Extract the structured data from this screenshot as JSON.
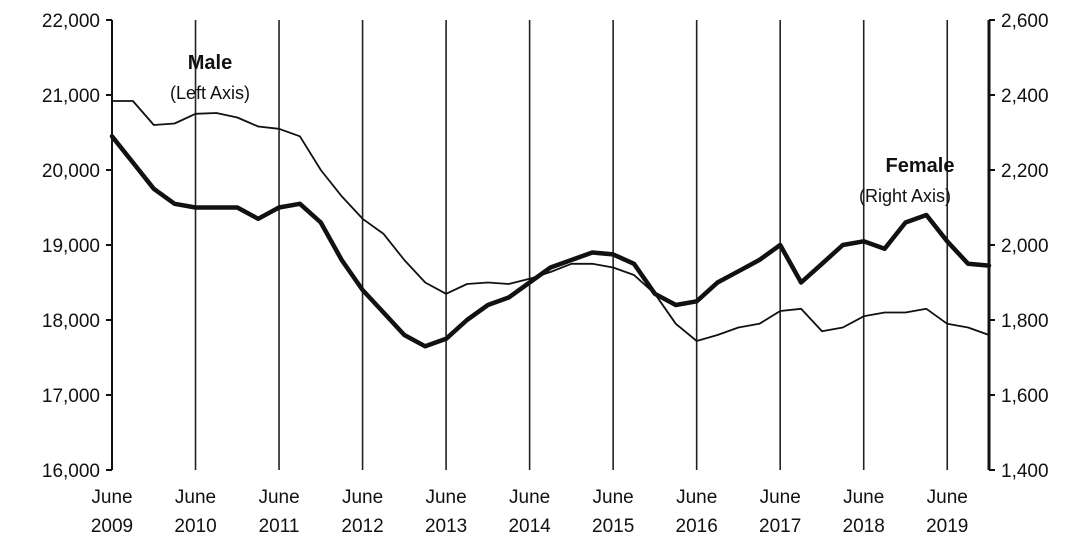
{
  "chart_data": {
    "type": "line",
    "title": "",
    "x_start": "2009-06",
    "x_end": "2019-12",
    "x_ticks": [
      {
        "l1": "June",
        "l2": "2009"
      },
      {
        "l1": "June",
        "l2": "2010"
      },
      {
        "l1": "June",
        "l2": "2011"
      },
      {
        "l1": "June",
        "l2": "2012"
      },
      {
        "l1": "June",
        "l2": "2013"
      },
      {
        "l1": "June",
        "l2": "2014"
      },
      {
        "l1": "June",
        "l2": "2015"
      },
      {
        "l1": "June",
        "l2": "2016"
      },
      {
        "l1": "June",
        "l2": "2017"
      },
      {
        "l1": "June",
        "l2": "2018"
      },
      {
        "l1": "June",
        "l2": "2019"
      }
    ],
    "left_axis": {
      "ylim": [
        16000,
        22000
      ],
      "ticks": [
        16000,
        17000,
        18000,
        19000,
        20000,
        21000,
        22000
      ],
      "tick_labels": [
        "16,000",
        "17,000",
        "18,000",
        "19,000",
        "20,000",
        "21,000",
        "22,000"
      ]
    },
    "right_axis": {
      "ylim": [
        1400,
        2600
      ],
      "ticks": [
        1400,
        1600,
        1800,
        2000,
        2200,
        2400,
        2600
      ],
      "tick_labels": [
        "1,400",
        "1,600",
        "1,800",
        "2,000",
        "2,200",
        "2,400",
        "2,600"
      ]
    },
    "grid": "vertical at each June",
    "annotations": {
      "male": {
        "title": "Male",
        "sub": "(Left Axis)"
      },
      "female": {
        "title": "Female",
        "sub": "(Right Axis)"
      }
    },
    "series": [
      {
        "key": "male",
        "axis": "left",
        "style": "thin",
        "points": [
          [
            "2009-06",
            20920
          ],
          [
            "2009-09",
            20920
          ],
          [
            "2009-12",
            20600
          ],
          [
            "2010-03",
            20620
          ],
          [
            "2010-06",
            20750
          ],
          [
            "2010-09",
            20760
          ],
          [
            "2010-12",
            20700
          ],
          [
            "2011-03",
            20580
          ],
          [
            "2011-06",
            20550
          ],
          [
            "2011-09",
            20450
          ],
          [
            "2011-12",
            20000
          ],
          [
            "2012-03",
            19650
          ],
          [
            "2012-06",
            19350
          ],
          [
            "2012-09",
            19150
          ],
          [
            "2012-12",
            18800
          ],
          [
            "2013-03",
            18500
          ],
          [
            "2013-06",
            18350
          ],
          [
            "2013-09",
            18480
          ],
          [
            "2013-12",
            18500
          ],
          [
            "2014-03",
            18480
          ],
          [
            "2014-06",
            18550
          ],
          [
            "2014-09",
            18640
          ],
          [
            "2014-12",
            18750
          ],
          [
            "2015-03",
            18750
          ],
          [
            "2015-06",
            18700
          ],
          [
            "2015-09",
            18600
          ],
          [
            "2015-12",
            18350
          ],
          [
            "2016-03",
            17950
          ],
          [
            "2016-06",
            17720
          ],
          [
            "2016-09",
            17800
          ],
          [
            "2016-12",
            17900
          ],
          [
            "2017-03",
            17950
          ],
          [
            "2017-06",
            18120
          ],
          [
            "2017-09",
            18150
          ],
          [
            "2017-12",
            17850
          ],
          [
            "2018-03",
            17900
          ],
          [
            "2018-06",
            18050
          ],
          [
            "2018-09",
            18100
          ],
          [
            "2018-12",
            18100
          ],
          [
            "2019-03",
            18150
          ],
          [
            "2019-06",
            17950
          ],
          [
            "2019-09",
            17900
          ],
          [
            "2019-12",
            17800
          ]
        ]
      },
      {
        "key": "female",
        "axis": "right",
        "style": "thick",
        "points": [
          [
            "2009-06",
            2290
          ],
          [
            "2009-09",
            2220
          ],
          [
            "2009-12",
            2150
          ],
          [
            "2010-03",
            2110
          ],
          [
            "2010-06",
            2100
          ],
          [
            "2010-09",
            2100
          ],
          [
            "2010-12",
            2100
          ],
          [
            "2011-03",
            2070
          ],
          [
            "2011-06",
            2100
          ],
          [
            "2011-09",
            2110
          ],
          [
            "2011-12",
            2060
          ],
          [
            "2012-03",
            1960
          ],
          [
            "2012-06",
            1880
          ],
          [
            "2012-09",
            1820
          ],
          [
            "2012-12",
            1760
          ],
          [
            "2013-03",
            1730
          ],
          [
            "2013-06",
            1750
          ],
          [
            "2013-09",
            1800
          ],
          [
            "2013-12",
            1840
          ],
          [
            "2014-03",
            1860
          ],
          [
            "2014-06",
            1900
          ],
          [
            "2014-09",
            1940
          ],
          [
            "2014-12",
            1960
          ],
          [
            "2015-03",
            1980
          ],
          [
            "2015-06",
            1975
          ],
          [
            "2015-09",
            1950
          ],
          [
            "2015-12",
            1870
          ],
          [
            "2016-03",
            1840
          ],
          [
            "2016-06",
            1850
          ],
          [
            "2016-09",
            1900
          ],
          [
            "2016-12",
            1930
          ],
          [
            "2017-03",
            1960
          ],
          [
            "2017-06",
            2000
          ],
          [
            "2017-09",
            1900
          ],
          [
            "2017-12",
            1950
          ],
          [
            "2018-03",
            2000
          ],
          [
            "2018-06",
            2010
          ],
          [
            "2018-09",
            1990
          ],
          [
            "2018-12",
            2060
          ],
          [
            "2019-03",
            2080
          ],
          [
            "2019-06",
            2010
          ],
          [
            "2019-09",
            1950
          ],
          [
            "2019-12",
            1945
          ]
        ]
      }
    ]
  }
}
